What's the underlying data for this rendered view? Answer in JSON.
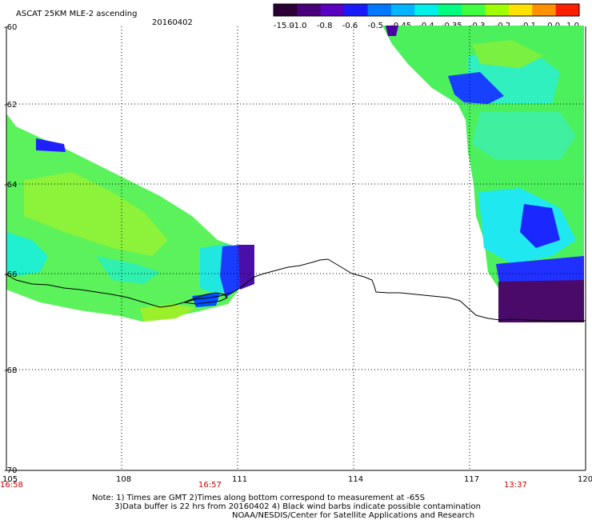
{
  "header": {
    "title": "ASCAT 25KM MLE-2 ascending",
    "date": "20160402"
  },
  "colorbar": {
    "labels": [
      "-15.0",
      "-1.0",
      "-0.8",
      "-0.6",
      "-0.5",
      "-0.45",
      "-0.4",
      "-0.35",
      "-0.3",
      "-0.2",
      "-0.1",
      "0.0",
      "1.0"
    ],
    "colors": [
      "#2a0035",
      "#4a007a",
      "#5a00c0",
      "#1a1aff",
      "#0078ff",
      "#00b4ff",
      "#00f0e8",
      "#00ff80",
      "#40ff40",
      "#a0ff00",
      "#ffe000",
      "#ff9000",
      "#ff2000"
    ]
  },
  "axes": {
    "x_ticks": [
      "105",
      "108",
      "111",
      "114",
      "117",
      "120"
    ],
    "y_ticks": [
      "-60",
      "-62",
      "-64",
      "-66",
      "-68",
      "-70"
    ]
  },
  "times": [
    "16:58",
    "16:57",
    "13:37"
  ],
  "notes": {
    "line1": "Note: 1) Times are GMT 2)Times along bottom correspond to measurement at -65S",
    "line2": "3)Data buffer is 22 hrs from 20160402 4) Black wind barbs indicate possible contamination",
    "line3": "NOAA/NESDIS/Center for Satellite Applications and Research"
  }
}
